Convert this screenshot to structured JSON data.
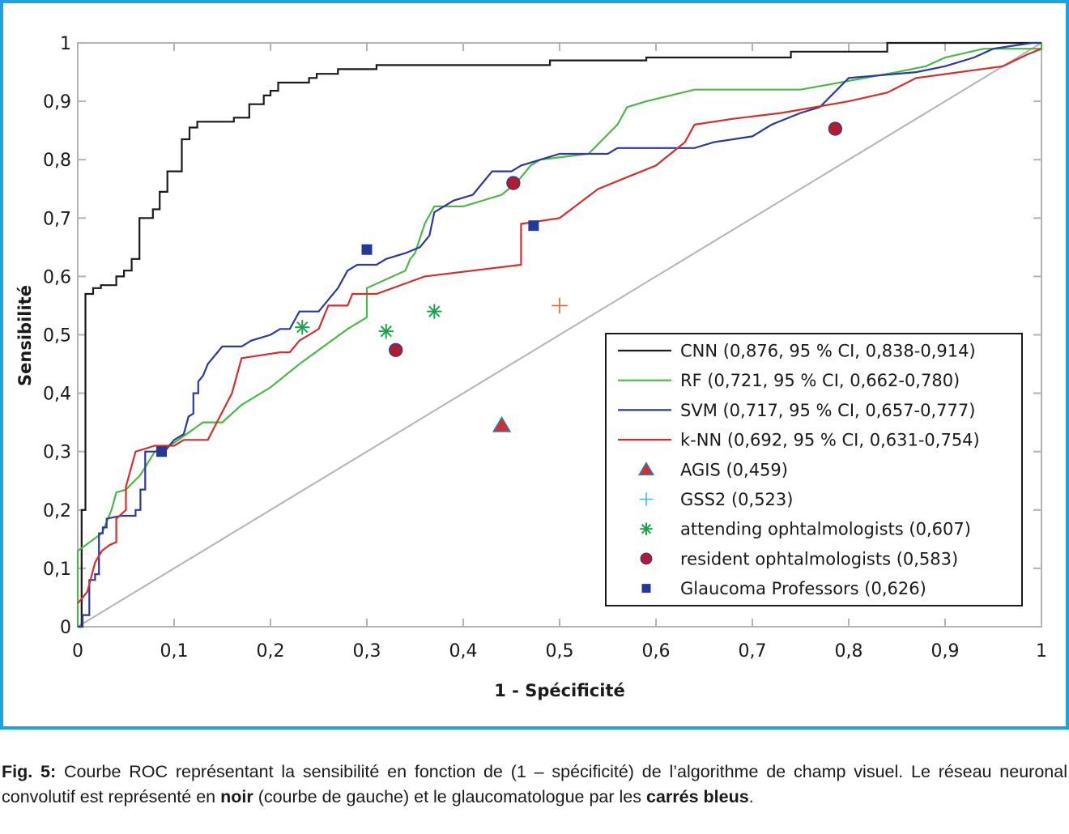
{
  "chart_data": {
    "type": "line",
    "xlabel": "1 - Spécificité",
    "ylabel": "Sensibilité",
    "xlim": [
      0,
      1
    ],
    "ylim": [
      0,
      1
    ],
    "x_ticks": [
      0,
      0.1,
      0.2,
      0.3,
      0.4,
      0.5,
      0.6,
      0.7,
      0.8,
      0.9,
      1
    ],
    "x_tick_labels": [
      "0",
      "0,1",
      "0,2",
      "0,3",
      "0,4",
      "0,5",
      "0,6",
      "0,7",
      "0,8",
      "0,9",
      "1"
    ],
    "y_ticks": [
      0,
      0.1,
      0.2,
      0.3,
      0.4,
      0.5,
      0.6,
      0.7,
      0.8,
      0.9,
      1
    ],
    "y_tick_labels": [
      "0",
      "0,1",
      "0,2",
      "0,3",
      "0,4",
      "0,5",
      "0,6",
      "0,7",
      "0,8",
      "0,9",
      "1"
    ],
    "grid": false,
    "legend_position": "bottom-right",
    "diagonal": {
      "color": "#b4b4b4",
      "points": [
        [
          0,
          0
        ],
        [
          1,
          1
        ]
      ]
    },
    "series": [
      {
        "name": "CNN",
        "legend": "CNN (0,876, 95 % CI, 0,838-0,914)",
        "color": "#1a1a1a",
        "kind": "line",
        "points": [
          [
            0,
            0
          ],
          [
            0.004,
            0
          ],
          [
            0.004,
            0.2
          ],
          [
            0.008,
            0.2
          ],
          [
            0.008,
            0.57
          ],
          [
            0.016,
            0.57
          ],
          [
            0.016,
            0.58
          ],
          [
            0.024,
            0.58
          ],
          [
            0.024,
            0.585
          ],
          [
            0.04,
            0.585
          ],
          [
            0.04,
            0.6
          ],
          [
            0.048,
            0.6
          ],
          [
            0.048,
            0.61
          ],
          [
            0.056,
            0.61
          ],
          [
            0.056,
            0.63
          ],
          [
            0.064,
            0.63
          ],
          [
            0.064,
            0.7
          ],
          [
            0.078,
            0.7
          ],
          [
            0.078,
            0.715
          ],
          [
            0.085,
            0.715
          ],
          [
            0.085,
            0.745
          ],
          [
            0.093,
            0.745
          ],
          [
            0.093,
            0.78
          ],
          [
            0.108,
            0.78
          ],
          [
            0.108,
            0.835
          ],
          [
            0.116,
            0.835
          ],
          [
            0.116,
            0.855
          ],
          [
            0.124,
            0.855
          ],
          [
            0.124,
            0.865
          ],
          [
            0.162,
            0.865
          ],
          [
            0.162,
            0.872
          ],
          [
            0.178,
            0.872
          ],
          [
            0.178,
            0.895
          ],
          [
            0.193,
            0.895
          ],
          [
            0.193,
            0.91
          ],
          [
            0.2,
            0.91
          ],
          [
            0.2,
            0.918
          ],
          [
            0.208,
            0.918
          ],
          [
            0.208,
            0.932
          ],
          [
            0.24,
            0.932
          ],
          [
            0.24,
            0.94
          ],
          [
            0.248,
            0.94
          ],
          [
            0.248,
            0.947
          ],
          [
            0.27,
            0.947
          ],
          [
            0.27,
            0.955
          ],
          [
            0.31,
            0.955
          ],
          [
            0.31,
            0.962
          ],
          [
            0.49,
            0.962
          ],
          [
            0.49,
            0.97
          ],
          [
            0.59,
            0.97
          ],
          [
            0.59,
            0.975
          ],
          [
            0.74,
            0.975
          ],
          [
            0.74,
            0.985
          ],
          [
            0.84,
            0.985
          ],
          [
            0.84,
            1
          ],
          [
            1,
            1
          ]
        ]
      },
      {
        "name": "RF",
        "legend": "RF (0,721, 95 % CI, 0,662-0,780)",
        "color": "#4db848",
        "kind": "line",
        "points": [
          [
            0,
            0
          ],
          [
            0,
            0.13
          ],
          [
            0.025,
            0.16
          ],
          [
            0.035,
            0.2
          ],
          [
            0.04,
            0.23
          ],
          [
            0.05,
            0.235
          ],
          [
            0.065,
            0.26
          ],
          [
            0.08,
            0.3
          ],
          [
            0.1,
            0.315
          ],
          [
            0.13,
            0.35
          ],
          [
            0.15,
            0.35
          ],
          [
            0.17,
            0.38
          ],
          [
            0.2,
            0.41
          ],
          [
            0.23,
            0.45
          ],
          [
            0.28,
            0.51
          ],
          [
            0.3,
            0.53
          ],
          [
            0.3,
            0.58
          ],
          [
            0.34,
            0.61
          ],
          [
            0.345,
            0.63
          ],
          [
            0.35,
            0.64
          ],
          [
            0.36,
            0.69
          ],
          [
            0.37,
            0.72
          ],
          [
            0.4,
            0.72
          ],
          [
            0.44,
            0.74
          ],
          [
            0.455,
            0.76
          ],
          [
            0.47,
            0.79
          ],
          [
            0.48,
            0.8
          ],
          [
            0.53,
            0.81
          ],
          [
            0.56,
            0.86
          ],
          [
            0.57,
            0.89
          ],
          [
            0.59,
            0.9
          ],
          [
            0.64,
            0.92
          ],
          [
            0.75,
            0.92
          ],
          [
            0.85,
            0.95
          ],
          [
            0.88,
            0.96
          ],
          [
            0.9,
            0.975
          ],
          [
            0.94,
            0.99
          ],
          [
            1,
            0.99
          ],
          [
            1,
            1
          ]
        ]
      },
      {
        "name": "SVM",
        "legend": "SVM (0,717, 95 % CI, 0,657-0,777)",
        "color": "#2b3a9b",
        "kind": "line",
        "points": [
          [
            0,
            0
          ],
          [
            0.005,
            0
          ],
          [
            0.005,
            0.02
          ],
          [
            0.012,
            0.02
          ],
          [
            0.012,
            0.08
          ],
          [
            0.018,
            0.08
          ],
          [
            0.018,
            0.09
          ],
          [
            0.022,
            0.09
          ],
          [
            0.022,
            0.16
          ],
          [
            0.026,
            0.16
          ],
          [
            0.026,
            0.17
          ],
          [
            0.03,
            0.17
          ],
          [
            0.03,
            0.185
          ],
          [
            0.045,
            0.19
          ],
          [
            0.06,
            0.19
          ],
          [
            0.06,
            0.2
          ],
          [
            0.065,
            0.2
          ],
          [
            0.065,
            0.235
          ],
          [
            0.07,
            0.235
          ],
          [
            0.07,
            0.3
          ],
          [
            0.09,
            0.3
          ],
          [
            0.1,
            0.32
          ],
          [
            0.11,
            0.33
          ],
          [
            0.115,
            0.36
          ],
          [
            0.12,
            0.365
          ],
          [
            0.12,
            0.4
          ],
          [
            0.125,
            0.4
          ],
          [
            0.125,
            0.42
          ],
          [
            0.13,
            0.43
          ],
          [
            0.135,
            0.45
          ],
          [
            0.14,
            0.46
          ],
          [
            0.15,
            0.48
          ],
          [
            0.17,
            0.48
          ],
          [
            0.18,
            0.49
          ],
          [
            0.2,
            0.5
          ],
          [
            0.21,
            0.51
          ],
          [
            0.22,
            0.51
          ],
          [
            0.23,
            0.54
          ],
          [
            0.25,
            0.54
          ],
          [
            0.26,
            0.56
          ],
          [
            0.27,
            0.58
          ],
          [
            0.28,
            0.61
          ],
          [
            0.29,
            0.62
          ],
          [
            0.31,
            0.62
          ],
          [
            0.32,
            0.63
          ],
          [
            0.34,
            0.64
          ],
          [
            0.355,
            0.65
          ],
          [
            0.365,
            0.67
          ],
          [
            0.37,
            0.71
          ],
          [
            0.39,
            0.73
          ],
          [
            0.41,
            0.74
          ],
          [
            0.42,
            0.76
          ],
          [
            0.43,
            0.78
          ],
          [
            0.45,
            0.78
          ],
          [
            0.46,
            0.79
          ],
          [
            0.48,
            0.8
          ],
          [
            0.5,
            0.81
          ],
          [
            0.55,
            0.81
          ],
          [
            0.56,
            0.82
          ],
          [
            0.64,
            0.82
          ],
          [
            0.66,
            0.83
          ],
          [
            0.7,
            0.84
          ],
          [
            0.72,
            0.86
          ],
          [
            0.75,
            0.88
          ],
          [
            0.77,
            0.89
          ],
          [
            0.8,
            0.94
          ],
          [
            0.87,
            0.95
          ],
          [
            0.9,
            0.96
          ],
          [
            0.93,
            0.975
          ],
          [
            0.95,
            0.99
          ],
          [
            0.99,
            1
          ],
          [
            1,
            1
          ]
        ]
      },
      {
        "name": "k-NN",
        "legend": "k-NN (0,692, 95 % CI, 0,631-0,754)",
        "color": "#d42e2e",
        "kind": "line",
        "points": [
          [
            0,
            0.04
          ],
          [
            0.01,
            0.06
          ],
          [
            0.018,
            0.11
          ],
          [
            0.025,
            0.13
          ],
          [
            0.033,
            0.14
          ],
          [
            0.04,
            0.145
          ],
          [
            0.04,
            0.185
          ],
          [
            0.05,
            0.2
          ],
          [
            0.05,
            0.24
          ],
          [
            0.06,
            0.3
          ],
          [
            0.08,
            0.31
          ],
          [
            0.1,
            0.31
          ],
          [
            0.11,
            0.32
          ],
          [
            0.135,
            0.32
          ],
          [
            0.16,
            0.4
          ],
          [
            0.17,
            0.46
          ],
          [
            0.21,
            0.47
          ],
          [
            0.22,
            0.47
          ],
          [
            0.23,
            0.49
          ],
          [
            0.25,
            0.51
          ],
          [
            0.26,
            0.55
          ],
          [
            0.28,
            0.55
          ],
          [
            0.285,
            0.57
          ],
          [
            0.31,
            0.57
          ],
          [
            0.36,
            0.6
          ],
          [
            0.41,
            0.61
          ],
          [
            0.46,
            0.62
          ],
          [
            0.46,
            0.69
          ],
          [
            0.5,
            0.7
          ],
          [
            0.54,
            0.75
          ],
          [
            0.57,
            0.77
          ],
          [
            0.6,
            0.79
          ],
          [
            0.63,
            0.83
          ],
          [
            0.64,
            0.86
          ],
          [
            0.68,
            0.87
          ],
          [
            0.73,
            0.88
          ],
          [
            0.8,
            0.9
          ],
          [
            0.84,
            0.915
          ],
          [
            0.87,
            0.94
          ],
          [
            0.96,
            0.96
          ],
          [
            0.985,
            0.98
          ],
          [
            1,
            0.99
          ]
        ]
      },
      {
        "name": "AGIS",
        "legend": "AGIS (0,459)",
        "color": "#d42e2e",
        "edge_color": "#2b7fc1",
        "kind": "marker",
        "marker": "triangle",
        "points": [
          [
            0.44,
            0.345
          ]
        ]
      },
      {
        "name": "GSS2",
        "legend": "GSS2 (0,523)",
        "color": "#e2642a",
        "legend_color": "#4fb6e2",
        "kind": "marker",
        "marker": "plus",
        "points": [
          [
            0.5,
            0.55
          ]
        ]
      },
      {
        "name": "attending ophtalmologists",
        "legend": "attending ophtalmologists (0,607)",
        "color": "#1fa34a",
        "kind": "marker",
        "marker": "asterisk",
        "points": [
          [
            0.233,
            0.513
          ],
          [
            0.32,
            0.506
          ],
          [
            0.37,
            0.54
          ]
        ]
      },
      {
        "name": "resident ophtalmologists",
        "legend": "resident ophtalmologists (0,583)",
        "color": "#b01d2e",
        "edge_color": "#2b3a9b",
        "kind": "marker",
        "marker": "circle",
        "points": [
          [
            0.33,
            0.474
          ],
          [
            0.452,
            0.76
          ],
          [
            0.786,
            0.853
          ]
        ]
      },
      {
        "name": "Glaucoma Professors",
        "legend": "Glaucoma Professors (0,626)",
        "color": "#22399a",
        "kind": "marker",
        "marker": "square",
        "points": [
          [
            0.087,
            0.3
          ],
          [
            0.3,
            0.646
          ],
          [
            0.473,
            0.687
          ]
        ]
      }
    ]
  },
  "caption": {
    "label": "Fig. 5:",
    "text_1": " Courbe ROC représentant la sensibilité en fonction de (1 – spécificité) de l’algorithme de champ visuel. Le réseau neuronal convolutif est représenté en ",
    "bold_1": "noir",
    "text_2": " (courbe de gauche) et le glaucomatologue par les ",
    "bold_2": "carrés bleus",
    "text_3": "."
  }
}
